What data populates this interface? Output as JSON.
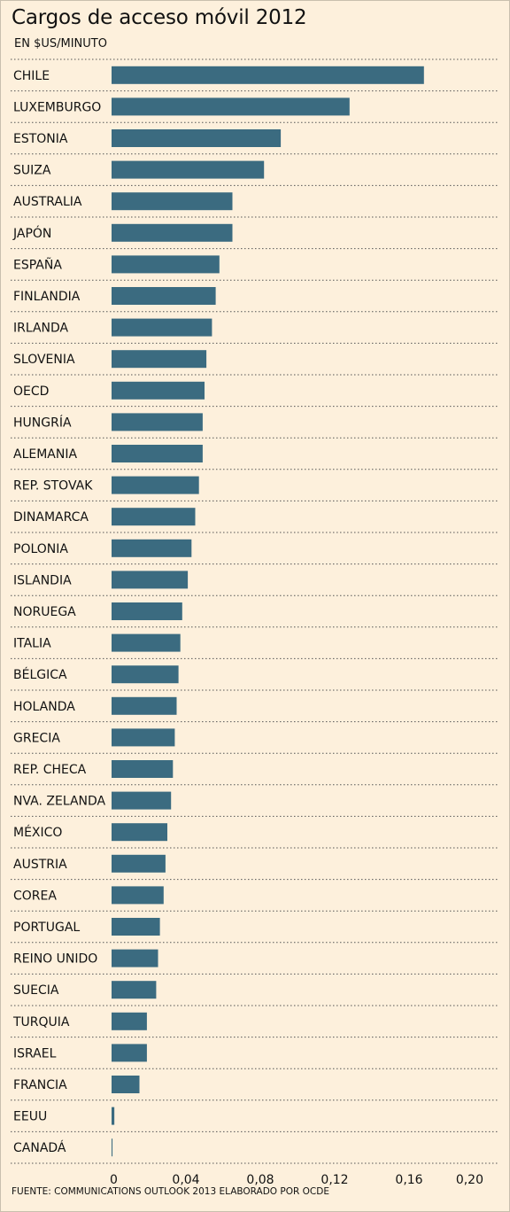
{
  "chart_data": {
    "type": "bar",
    "orientation": "horizontal",
    "title": "Cargos de acceso móvil 2012",
    "subtitle": "EN $US/MINUTO",
    "source": "FUENTE: COMMUNICATIONS OUTLOOK 2013 ELABORADO POR OCDE",
    "categories": [
      "CHILE",
      "LUXEMBURGO",
      "ESTONIA",
      "SUIZA",
      "AUSTRALIA",
      "JAPÓN",
      "ESPAÑA",
      "FINLANDIA",
      "IRLANDA",
      "SLOVENIA",
      "OECD",
      "HUNGRÍA",
      "ALEMANIA",
      "REP. STOVAK",
      "DINAMARCA",
      "POLONIA",
      "ISLANDIA",
      "NORUEGA",
      "ITALIA",
      "BÉLGICA",
      "HOLANDA",
      "GRECIA",
      "REP. CHECA",
      "NVA. ZELANDA",
      "MÉXICO",
      "AUSTRIA",
      "COREA",
      "PORTUGAL",
      "REINO UNIDO",
      "SUECIA",
      "TURQUIA",
      "ISRAEL",
      "FRANCIA",
      "EEUU",
      "CANADÁ"
    ],
    "values": [
      0.168,
      0.128,
      0.091,
      0.082,
      0.065,
      0.065,
      0.058,
      0.056,
      0.054,
      0.051,
      0.05,
      0.049,
      0.049,
      0.047,
      0.045,
      0.043,
      0.041,
      0.038,
      0.037,
      0.036,
      0.035,
      0.034,
      0.033,
      0.032,
      0.03,
      0.029,
      0.028,
      0.026,
      0.025,
      0.024,
      0.019,
      0.019,
      0.015,
      0.0015,
      0.0005
    ],
    "xlim": [
      0,
      0.2
    ],
    "x_ticks": [
      {
        "value": 0,
        "label": "0"
      },
      {
        "value": 0.04,
        "label": "0,04"
      },
      {
        "value": 0.08,
        "label": "0,08"
      },
      {
        "value": 0.12,
        "label": "0,12"
      },
      {
        "value": 0.16,
        "label": "0,16"
      },
      {
        "value": 0.2,
        "label": "0,20"
      }
    ],
    "grid": false,
    "row_separators": "dotted",
    "bar_color": "#3b6b80",
    "background_color": "#fdf0dc"
  }
}
